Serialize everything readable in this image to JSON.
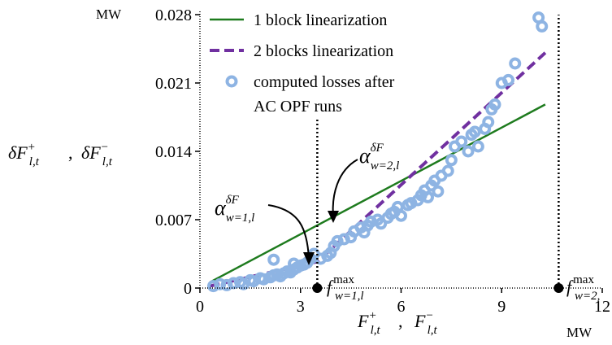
{
  "chart_data": {
    "type": "line",
    "title": "",
    "x_unit": "MW",
    "y_unit": "MW",
    "xlim": [
      0,
      12
    ],
    "ylim": [
      0,
      0.028
    ],
    "x_ticks": [
      "0",
      "3",
      "6",
      "9",
      "12"
    ],
    "y_ticks": [
      "0",
      "0.007",
      "0.014",
      "0.021",
      "0.028"
    ],
    "y_tick_values": [
      0,
      0.007,
      0.014,
      0.021,
      0.028
    ],
    "x_tick_values": [
      0,
      3,
      6,
      9,
      12
    ],
    "grid": false,
    "legend_position": "top-left",
    "series": [
      {
        "name": "1 block linearization",
        "style": "solid",
        "color": "#1e7b1e",
        "points": [
          [
            0.3,
            0.0006
          ],
          [
            10.3,
            0.0188
          ]
        ]
      },
      {
        "name": "2 blocks linearization",
        "style": "dashed",
        "color": "#7030a0",
        "points": [
          [
            0.3,
            0.0002
          ],
          [
            3.5,
            0.0027
          ],
          [
            10.3,
            0.0241
          ]
        ]
      },
      {
        "name": "computed losses after AC OPF runs",
        "style": "markers",
        "color": "#8eb4e3",
        "points": [
          [
            0.4,
            0.0002
          ],
          [
            0.6,
            0.0004
          ],
          [
            0.8,
            0.0003
          ],
          [
            1.0,
            0.0005
          ],
          [
            1.2,
            0.0006
          ],
          [
            1.3,
            0.0004
          ],
          [
            1.5,
            0.0008
          ],
          [
            1.6,
            0.0007
          ],
          [
            1.8,
            0.001
          ],
          [
            1.9,
            0.0009
          ],
          [
            2.1,
            0.0011
          ],
          [
            2.2,
            0.0013
          ],
          [
            2.3,
            0.0014
          ],
          [
            2.4,
            0.0012
          ],
          [
            2.5,
            0.0015
          ],
          [
            2.6,
            0.0017
          ],
          [
            2.7,
            0.0016
          ],
          [
            2.8,
            0.0019
          ],
          [
            2.9,
            0.0021
          ],
          [
            3.0,
            0.0023
          ],
          [
            3.1,
            0.0024
          ],
          [
            3.2,
            0.0026
          ],
          [
            3.3,
            0.003
          ],
          [
            3.4,
            0.0035
          ],
          [
            2.2,
            0.0029
          ],
          [
            2.8,
            0.0025
          ],
          [
            3.6,
            0.003
          ],
          [
            3.8,
            0.0033
          ],
          [
            3.9,
            0.0036
          ],
          [
            4.0,
            0.0043
          ],
          [
            4.1,
            0.0048
          ],
          [
            4.3,
            0.005
          ],
          [
            4.5,
            0.0052
          ],
          [
            4.6,
            0.0058
          ],
          [
            4.8,
            0.0062
          ],
          [
            4.9,
            0.0057
          ],
          [
            5.0,
            0.0064
          ],
          [
            5.1,
            0.0068
          ],
          [
            5.3,
            0.007
          ],
          [
            5.4,
            0.0066
          ],
          [
            5.6,
            0.0072
          ],
          [
            5.7,
            0.0076
          ],
          [
            5.8,
            0.0078
          ],
          [
            5.9,
            0.0083
          ],
          [
            6.0,
            0.0074
          ],
          [
            6.2,
            0.0085
          ],
          [
            6.3,
            0.0087
          ],
          [
            6.5,
            0.009
          ],
          [
            6.6,
            0.0095
          ],
          [
            6.7,
            0.01
          ],
          [
            6.8,
            0.0093
          ],
          [
            6.9,
            0.0105
          ],
          [
            7.0,
            0.011
          ],
          [
            7.1,
            0.0099
          ],
          [
            7.2,
            0.0115
          ],
          [
            7.4,
            0.012
          ],
          [
            7.5,
            0.0131
          ],
          [
            7.6,
            0.0145
          ],
          [
            7.8,
            0.015
          ],
          [
            8.0,
            0.014
          ],
          [
            8.1,
            0.0157
          ],
          [
            8.2,
            0.016
          ],
          [
            8.3,
            0.0145
          ],
          [
            8.5,
            0.0163
          ],
          [
            8.6,
            0.017
          ],
          [
            8.7,
            0.0183
          ],
          [
            8.8,
            0.0188
          ],
          [
            9.0,
            0.021
          ],
          [
            9.2,
            0.0213
          ],
          [
            9.4,
            0.023
          ],
          [
            10.1,
            0.0277
          ],
          [
            10.2,
            0.0268
          ]
        ]
      }
    ],
    "annotations": [
      {
        "text": "α_{w=1,l}^{δF}",
        "points_to": [
          3.5,
          0.0028
        ]
      },
      {
        "text": "α_{w=2,l}^{δF}",
        "points_to": [
          4.4,
          0.0055
        ]
      },
      {
        "text": "f_{w=1,l}^{max}",
        "x": 3.5
      },
      {
        "text": "f_{w=2,l}^{max}",
        "x": 10.7
      }
    ],
    "vertical_markers": [
      3.5,
      10.7
    ]
  }
}
